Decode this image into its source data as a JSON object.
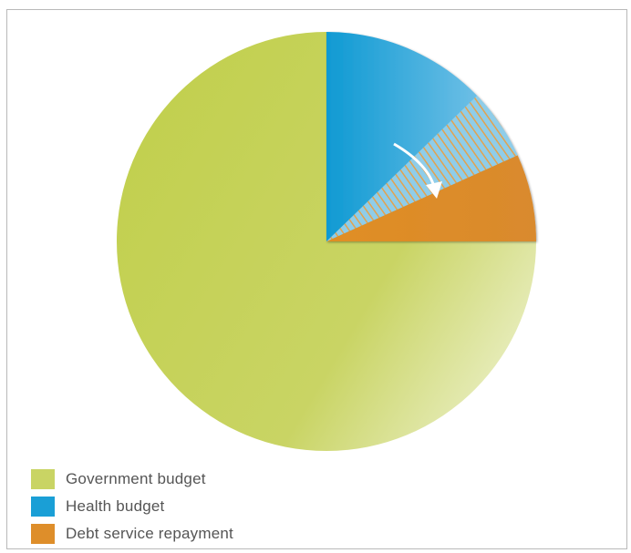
{
  "chart_data": {
    "type": "pie",
    "title": "",
    "series": [
      {
        "name": "Government budget",
        "color": "#c9d464"
      },
      {
        "name": "Health budget",
        "color": "#1a9fd6"
      },
      {
        "name": "Debt service repayment",
        "color": "#de8e2a"
      }
    ],
    "slices": [
      {
        "label": "Government budget",
        "value": 0.75,
        "color": "#c9d464"
      },
      {
        "label": "Health budget",
        "value": 0.1825,
        "color": "#1a9fd6"
      },
      {
        "label": "Debt service repayment",
        "value": 0.0675,
        "color": "#de8e2a"
      }
    ],
    "highlight": {
      "portion_of_health_budget_shifted_to_debt": 0.055,
      "pattern": "hatched"
    },
    "annotation_icon": "curved-arrow-icon",
    "legend_position": "bottom-left"
  },
  "legend": {
    "items": [
      {
        "label": "Government budget",
        "color": "#c9d464"
      },
      {
        "label": "Health budget",
        "color": "#1a9fd6"
      },
      {
        "label": "Debt service repayment",
        "color": "#de8e2a"
      }
    ]
  }
}
